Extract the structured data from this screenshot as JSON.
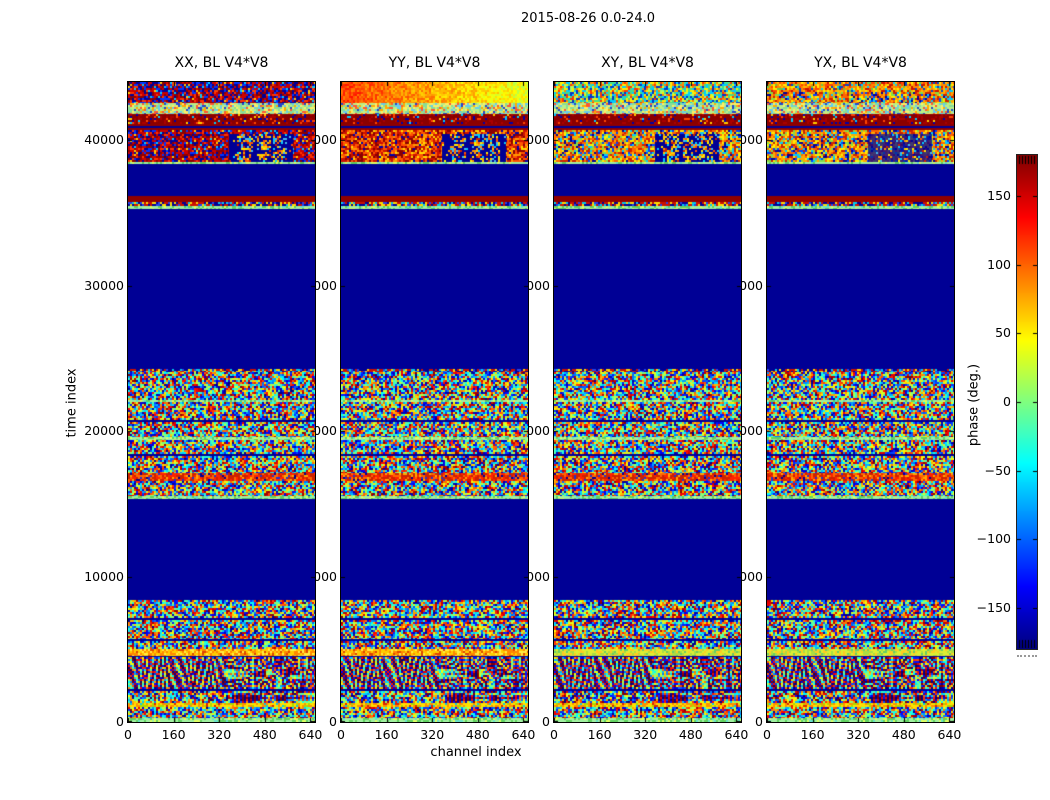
{
  "figure": {
    "title": "2015-08-26 0.0-24.0",
    "xlabel": "channel index",
    "ylabel": "time index"
  },
  "axes": {
    "x_ticks": [
      "0",
      "160",
      "320",
      "480",
      "640"
    ],
    "x_tick_values": [
      0,
      160,
      320,
      480,
      640
    ],
    "x_max": 656,
    "y_ticks": [
      "0",
      "10000",
      "20000",
      "30000",
      "40000"
    ],
    "y_tick_values": [
      0,
      10000,
      20000,
      30000,
      40000
    ],
    "y_max": 44000
  },
  "panels": [
    {
      "title": "XX, BL V4*V8",
      "variant": "xx",
      "seed": 101
    },
    {
      "title": "YY, BL V4*V8",
      "variant": "yy",
      "seed": 202
    },
    {
      "title": "XY, BL V4*V8",
      "variant": "xy",
      "seed": 303
    },
    {
      "title": "YX, BL V4*V8",
      "variant": "yx",
      "seed": 404
    }
  ],
  "colorbar": {
    "label": "phase (deg.)",
    "ticks": [
      "150",
      "100",
      "50",
      "0",
      "−50",
      "−100",
      "−150"
    ],
    "tick_values": [
      150,
      100,
      50,
      0,
      -50,
      -100,
      -150
    ],
    "vmin": -180,
    "vmax": 180,
    "colormap": "jet"
  },
  "chart_data": {
    "type": "heatmap",
    "title": "2015-08-26 0.0-24.0",
    "xlabel": "channel index",
    "ylabel": "time index",
    "value_label": "phase (deg.)",
    "value_range": [
      -180,
      180
    ],
    "colormap": "jet",
    "x_range": [
      0,
      656
    ],
    "y_range": [
      0,
      44000
    ],
    "panels": [
      "XX, BL V4*V8",
      "YY, BL V4*V8",
      "XY, BL V4*V8",
      "YX, BL V4*V8"
    ],
    "colors": {
      "navy": "#000095",
      "darkred": "#900000"
    },
    "bands": [
      {
        "t0": 0,
        "t1": 260,
        "kind": "noise",
        "palette": "greenline"
      },
      {
        "t0": 260,
        "t1": 1050,
        "kind": "noise",
        "palette": "jet"
      },
      {
        "t0": 1050,
        "t1": 1300,
        "kind": "noise",
        "palette": "yellowline"
      },
      {
        "t0": 1300,
        "t1": 2150,
        "kind": "circles"
      },
      {
        "t0": 2150,
        "t1": 2300,
        "kind": "solid",
        "color": "navy"
      },
      {
        "t0": 2300,
        "t1": 4450,
        "kind": "waves"
      },
      {
        "t0": 4450,
        "t1": 4560,
        "kind": "solid",
        "color": "navy"
      },
      {
        "t0": 4560,
        "t1": 5050,
        "kind": "noise",
        "palette": "orangeyellow",
        "variants": {
          "xy": "yellowgreen",
          "yx": "yellowgreen"
        }
      },
      {
        "t0": 5050,
        "t1": 5600,
        "kind": "noise",
        "palette": "jet"
      },
      {
        "t0": 5600,
        "t1": 5720,
        "kind": "solid",
        "color": "navy"
      },
      {
        "t0": 5720,
        "t1": 7000,
        "kind": "noise",
        "palette": "jet"
      },
      {
        "t0": 7000,
        "t1": 7120,
        "kind": "solid",
        "color": "navy"
      },
      {
        "t0": 7120,
        "t1": 8400,
        "kind": "noise",
        "palette": "jet"
      },
      {
        "t0": 8400,
        "t1": 15300,
        "kind": "solid",
        "color": "navy"
      },
      {
        "t0": 15300,
        "t1": 15520,
        "kind": "noise",
        "palette": "greenline"
      },
      {
        "t0": 15520,
        "t1": 16600,
        "kind": "noise",
        "palette": "jet"
      },
      {
        "t0": 16600,
        "t1": 17150,
        "kind": "noise",
        "palette": "redorange"
      },
      {
        "t0": 17150,
        "t1": 18300,
        "kind": "noise",
        "palette": "jet"
      },
      {
        "t0": 18300,
        "t1": 18430,
        "kind": "solid",
        "color": "navy"
      },
      {
        "t0": 18430,
        "t1": 19400,
        "kind": "noise",
        "palette": "jet"
      },
      {
        "t0": 19400,
        "t1": 19560,
        "kind": "noise",
        "palette": "greenline"
      },
      {
        "t0": 19560,
        "t1": 20600,
        "kind": "noise",
        "palette": "jet"
      },
      {
        "t0": 20600,
        "t1": 20730,
        "kind": "solid",
        "color": "navy"
      },
      {
        "t0": 20730,
        "t1": 22000,
        "kind": "noise",
        "palette": "jet"
      },
      {
        "t0": 22000,
        "t1": 22160,
        "kind": "noise",
        "palette": "greenline"
      },
      {
        "t0": 22160,
        "t1": 24050,
        "kind": "noise",
        "palette": "jet"
      },
      {
        "t0": 24050,
        "t1": 24300,
        "kind": "noise",
        "palette": "dotline"
      },
      {
        "t0": 24300,
        "t1": 35300,
        "kind": "solid",
        "color": "navy"
      },
      {
        "t0": 35300,
        "t1": 35470,
        "kind": "noise",
        "palette": "greenline"
      },
      {
        "t0": 35470,
        "t1": 35730,
        "kind": "noise",
        "palette": "dotline"
      },
      {
        "t0": 35730,
        "t1": 36160,
        "kind": "solid",
        "color": "darkred"
      },
      {
        "t0": 36160,
        "t1": 38350,
        "kind": "solid",
        "color": "navy"
      },
      {
        "t0": 38350,
        "t1": 38530,
        "kind": "noise",
        "palette": "greenline"
      },
      {
        "t0": 38530,
        "t1": 40450,
        "kind": "noise",
        "palette": "redblue",
        "variants": {
          "yy": "redorange2",
          "xy": "warmmix",
          "yx": "warmmix"
        },
        "block": {
          "x0": 0.54,
          "x1": 0.88,
          "strength": {
            "xx": 1,
            "yy": 1,
            "xy": 1,
            "yx": 0.55
          }
        }
      },
      {
        "t0": 40450,
        "t1": 40700,
        "kind": "noise",
        "palette": "redblue",
        "variants": {
          "yy": "redorange2",
          "xy": "warmmix",
          "yx": "warmmix"
        }
      },
      {
        "t0": 40700,
        "t1": 40860,
        "kind": "solid",
        "color": "darkred"
      },
      {
        "t0": 40860,
        "t1": 40970,
        "kind": "solid",
        "color": "navy"
      },
      {
        "t0": 40970,
        "t1": 41130,
        "kind": "solid",
        "color": "darkred"
      },
      {
        "t0": 41130,
        "t1": 41800,
        "kind": "noise",
        "palette": "darkredspeckle"
      },
      {
        "t0": 41800,
        "t1": 42550,
        "kind": "noise",
        "palette": "palegreens"
      },
      {
        "t0": 42550,
        "t1": 43300,
        "kind": "noise",
        "palette": "redblue",
        "variants": {
          "yy": "warmgrad",
          "xy": "coolmix",
          "yx": "warmmix"
        }
      },
      {
        "t0": 43300,
        "t1": 44000,
        "kind": "noise",
        "palette": "bluered",
        "variants": {
          "yy": "warmgrad",
          "xy": "coolmix",
          "yx": "warmmix2"
        }
      }
    ],
    "palettes": {
      "yellowline": [
        [
          "#ffe000",
          3
        ],
        [
          "#ff9000",
          2
        ],
        [
          "#aadd00",
          1
        ],
        [
          "#dd2200",
          0.4
        ],
        [
          "#00ccee",
          0.3
        ]
      ],
      "greenline": [
        [
          "#a0f0a0",
          4
        ],
        [
          "#60d060",
          2
        ],
        [
          "#e0ff60",
          1
        ],
        [
          "#66e0cc",
          0.5
        ]
      ],
      "dotline": [
        [
          "#cc1100",
          2
        ],
        [
          "#ffdd00",
          1.5
        ],
        [
          "#00ccee",
          1
        ],
        [
          "#2244ee",
          1
        ],
        [
          "#000095",
          2
        ]
      ],
      "orangeyellow": [
        [
          "#ffcc00",
          3
        ],
        [
          "#ff8800",
          3
        ],
        [
          "#ffee44",
          2
        ],
        [
          "#dd4400",
          1
        ]
      ],
      "yellowgreen": [
        [
          "#ddee33",
          3
        ],
        [
          "#aadd44",
          2
        ],
        [
          "#ffcc22",
          2
        ],
        [
          "#66cc66",
          1
        ]
      ],
      "redorange": [
        [
          "#cc2200",
          3
        ],
        [
          "#ff6600",
          2
        ],
        [
          "#ff2200",
          2
        ],
        [
          "#ffaa00",
          1
        ],
        [
          "#2233cc",
          0.5
        ],
        [
          "#000095",
          0.5
        ]
      ],
      "redblue": [
        [
          "#8b0000",
          3
        ],
        [
          "#cc0000",
          3
        ],
        [
          "#ff3300",
          1.5
        ],
        [
          "#000099",
          2.5
        ],
        [
          "#0033ff",
          1.5
        ],
        [
          "#00ccff",
          0.4
        ],
        [
          "#ffcc00",
          0.4
        ]
      ],
      "redorange2": [
        [
          "#cc1100",
          3
        ],
        [
          "#ff5500",
          3
        ],
        [
          "#ff9900",
          2
        ],
        [
          "#8b0000",
          2
        ],
        [
          "#0000aa",
          1
        ],
        [
          "#ffdd00",
          1
        ]
      ],
      "warmmix": [
        [
          "#ff6600",
          2
        ],
        [
          "#ffaa00",
          2
        ],
        [
          "#cc2200",
          2
        ],
        [
          "#ffee00",
          1.5
        ],
        [
          "#0044ff",
          1
        ],
        [
          "#00ccff",
          1
        ],
        [
          "#000099",
          1
        ],
        [
          "#88dd44",
          1
        ]
      ],
      "warmmix2": [
        [
          "#ff8800",
          3
        ],
        [
          "#ffbb00",
          2
        ],
        [
          "#ff4400",
          2
        ],
        [
          "#cc1100",
          1.5
        ],
        [
          "#ffee00",
          1.5
        ],
        [
          "#0044cc",
          1
        ],
        [
          "#00ccff",
          0.8
        ],
        [
          "#66cc44",
          0.8
        ]
      ],
      "coolmix": [
        [
          "#00ccff",
          2
        ],
        [
          "#44dd88",
          2
        ],
        [
          "#ffee00",
          2
        ],
        [
          "#ff8800",
          1.5
        ],
        [
          "#ff3300",
          1
        ],
        [
          "#0033cc",
          1.5
        ],
        [
          "#aaff66",
          1
        ]
      ],
      "darkredspeckle": [
        [
          "#8b0000",
          8
        ],
        [
          "#aa0000",
          2
        ],
        [
          "#0000aa",
          0.8
        ],
        [
          "#ff4400",
          0.8
        ],
        [
          "#ffcc00",
          0.3
        ],
        [
          "#00ccff",
          0.3
        ]
      ],
      "palegreens": [
        [
          "#bbee88",
          3
        ],
        [
          "#88dd99",
          2
        ],
        [
          "#ffee66",
          2
        ],
        [
          "#66ccee",
          1.5
        ],
        [
          "#ff5533",
          1
        ],
        [
          "#2244cc",
          1
        ],
        [
          "#ffaa00",
          1
        ]
      ],
      "bluered": [
        [
          "#000099",
          3
        ],
        [
          "#0033ff",
          2
        ],
        [
          "#cc0000",
          2.5
        ],
        [
          "#8b0000",
          2
        ],
        [
          "#ff4400",
          1
        ],
        [
          "#00ccff",
          0.7
        ],
        [
          "#ffcc00",
          0.5
        ]
      ],
      "blockdots": [
        [
          "#ffcc00",
          1
        ],
        [
          "#ff5500",
          1
        ],
        [
          "#00ccff",
          1
        ],
        [
          "#ffee00",
          1
        ],
        [
          "#ff9900",
          1
        ],
        [
          "#44bbee",
          0.7
        ],
        [
          "#cc2200",
          0.7
        ]
      ]
    }
  }
}
